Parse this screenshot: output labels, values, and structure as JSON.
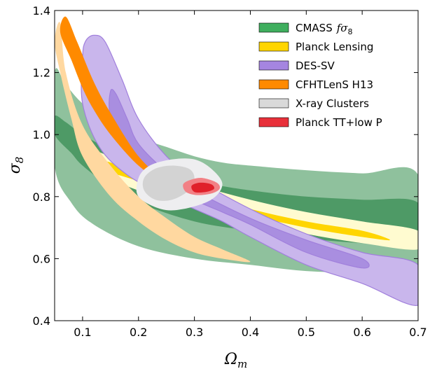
{
  "chart_data": {
    "type": "contour",
    "xlabel": "Ω_m",
    "ylabel": "σ_8",
    "xlim": [
      0.05,
      0.7
    ],
    "ylim": [
      0.4,
      1.4
    ],
    "xticks": [
      "0.1",
      "0.2",
      "0.3",
      "0.4",
      "0.5",
      "0.6",
      "0.7"
    ],
    "yticks": [
      "0.4",
      "0.6",
      "0.8",
      "1.0",
      "1.2",
      "1.4"
    ],
    "legend_position": "top-right",
    "series": [
      {
        "name": "CMASS fσ8",
        "legend_label": "CMASS",
        "legend_math": "fσ",
        "legend_sub": "8",
        "color_outer": "#8fc19d",
        "color_inner": "#4e9a66",
        "legend_color": "#3fae5e",
        "outer": [
          [
            0.05,
            1.2
          ],
          [
            0.05,
            0.9
          ],
          [
            0.08,
            0.78
          ],
          [
            0.12,
            0.71
          ],
          [
            0.2,
            0.64
          ],
          [
            0.3,
            0.6
          ],
          [
            0.4,
            0.58
          ],
          [
            0.5,
            0.56
          ],
          [
            0.6,
            0.555
          ],
          [
            0.7,
            0.55
          ],
          [
            0.7,
            0.87
          ],
          [
            0.6,
            0.875
          ],
          [
            0.5,
            0.885
          ],
          [
            0.4,
            0.9
          ],
          [
            0.35,
            0.91
          ],
          [
            0.3,
            0.93
          ],
          [
            0.25,
            0.96
          ],
          [
            0.2,
            0.99
          ],
          [
            0.15,
            1.03
          ],
          [
            0.1,
            1.1
          ],
          [
            0.07,
            1.16
          ]
        ],
        "inner": [
          [
            0.05,
            1.06
          ],
          [
            0.05,
            1.0
          ],
          [
            0.08,
            0.94
          ],
          [
            0.1,
            0.9
          ],
          [
            0.15,
            0.83
          ],
          [
            0.2,
            0.78
          ],
          [
            0.3,
            0.72
          ],
          [
            0.4,
            0.69
          ],
          [
            0.5,
            0.665
          ],
          [
            0.6,
            0.65
          ],
          [
            0.7,
            0.64
          ],
          [
            0.7,
            0.78
          ],
          [
            0.6,
            0.79
          ],
          [
            0.5,
            0.8
          ],
          [
            0.4,
            0.82
          ],
          [
            0.33,
            0.84
          ],
          [
            0.3,
            0.85
          ],
          [
            0.25,
            0.88
          ],
          [
            0.2,
            0.91
          ],
          [
            0.15,
            0.95
          ],
          [
            0.1,
            1.0
          ],
          [
            0.07,
            1.04
          ]
        ]
      },
      {
        "name": "Planck Lensing",
        "legend_label": "Planck Lensing",
        "color_outer": "#fffbd0",
        "color_inner": "#ffd500",
        "legend_color": "#ffd500",
        "outer": [
          [
            0.11,
            0.95
          ],
          [
            0.11,
            0.9
          ],
          [
            0.15,
            0.86
          ],
          [
            0.2,
            0.82
          ],
          [
            0.3,
            0.77
          ],
          [
            0.4,
            0.72
          ],
          [
            0.5,
            0.68
          ],
          [
            0.6,
            0.65
          ],
          [
            0.7,
            0.63
          ],
          [
            0.7,
            0.69
          ],
          [
            0.6,
            0.72
          ],
          [
            0.5,
            0.75
          ],
          [
            0.4,
            0.79
          ],
          [
            0.3,
            0.84
          ],
          [
            0.2,
            0.9
          ],
          [
            0.15,
            0.93
          ]
        ],
        "inner": [
          [
            0.11,
            0.92
          ],
          [
            0.13,
            0.89
          ],
          [
            0.2,
            0.85
          ],
          [
            0.3,
            0.79
          ],
          [
            0.4,
            0.74
          ],
          [
            0.5,
            0.7
          ],
          [
            0.6,
            0.67
          ],
          [
            0.65,
            0.66
          ],
          [
            0.6,
            0.69
          ],
          [
            0.5,
            0.72
          ],
          [
            0.4,
            0.76
          ],
          [
            0.3,
            0.81
          ],
          [
            0.2,
            0.87
          ],
          [
            0.15,
            0.91
          ]
        ]
      },
      {
        "name": "DES-SV",
        "legend_label": "DES-SV",
        "color_outer": "#c9b6ec",
        "color_inner": "#a98ee0",
        "legend_color": "#a585e0",
        "edge_color": "#a07fdc",
        "outer": [
          [
            0.1,
            1.25
          ],
          [
            0.1,
            1.1
          ],
          [
            0.13,
            0.96
          ],
          [
            0.18,
            0.87
          ],
          [
            0.25,
            0.8
          ],
          [
            0.3,
            0.76
          ],
          [
            0.35,
            0.72
          ],
          [
            0.4,
            0.67
          ],
          [
            0.5,
            0.58
          ],
          [
            0.6,
            0.52
          ],
          [
            0.7,
            0.45
          ],
          [
            0.7,
            0.58
          ],
          [
            0.6,
            0.62
          ],
          [
            0.5,
            0.68
          ],
          [
            0.4,
            0.76
          ],
          [
            0.3,
            0.86
          ],
          [
            0.25,
            0.93
          ],
          [
            0.2,
            1.05
          ],
          [
            0.17,
            1.18
          ],
          [
            0.14,
            1.3
          ],
          [
            0.12,
            1.32
          ],
          [
            0.105,
            1.3
          ]
        ],
        "inner": [
          [
            0.15,
            1.14
          ],
          [
            0.15,
            1.06
          ],
          [
            0.18,
            0.95
          ],
          [
            0.25,
            0.85
          ],
          [
            0.3,
            0.79
          ],
          [
            0.35,
            0.75
          ],
          [
            0.4,
            0.71
          ],
          [
            0.5,
            0.62
          ],
          [
            0.6,
            0.57
          ],
          [
            0.6,
            0.6
          ],
          [
            0.5,
            0.66
          ],
          [
            0.4,
            0.73
          ],
          [
            0.3,
            0.82
          ],
          [
            0.25,
            0.88
          ],
          [
            0.2,
            0.97
          ],
          [
            0.18,
            1.05
          ],
          [
            0.16,
            1.13
          ]
        ]
      },
      {
        "name": "CFHTLenS H13",
        "legend_label": "CFHTLenS H13",
        "color_outer": "#ffd8a0",
        "color_inner": "#ff8a00",
        "legend_color": "#ff8a00",
        "outer": [
          [
            0.06,
            1.36
          ],
          [
            0.07,
            1.2
          ],
          [
            0.1,
            1.03
          ],
          [
            0.15,
            0.9
          ],
          [
            0.2,
            0.8
          ],
          [
            0.25,
            0.73
          ],
          [
            0.3,
            0.67
          ],
          [
            0.35,
            0.63
          ],
          [
            0.4,
            0.59
          ],
          [
            0.35,
            0.6
          ],
          [
            0.3,
            0.62
          ],
          [
            0.25,
            0.66
          ],
          [
            0.2,
            0.72
          ],
          [
            0.15,
            0.8
          ],
          [
            0.1,
            0.93
          ],
          [
            0.08,
            1.05
          ],
          [
            0.06,
            1.2
          ],
          [
            0.05,
            1.3
          ]
        ],
        "inner": [
          [
            0.07,
            1.38
          ],
          [
            0.09,
            1.3
          ],
          [
            0.12,
            1.17
          ],
          [
            0.15,
            1.07
          ],
          [
            0.2,
            0.93
          ],
          [
            0.25,
            0.85
          ],
          [
            0.28,
            0.83
          ],
          [
            0.25,
            0.84
          ],
          [
            0.2,
            0.9
          ],
          [
            0.15,
            1.0
          ],
          [
            0.12,
            1.08
          ],
          [
            0.1,
            1.15
          ],
          [
            0.08,
            1.24
          ],
          [
            0.06,
            1.33
          ]
        ]
      },
      {
        "name": "X-ray Clusters",
        "legend_label": "X-ray Clusters",
        "color_outer": "#eeeef0",
        "color_inner": "#d3d3d3",
        "legend_color": "#d9d9d9",
        "outer": [
          [
            0.2,
            0.86
          ],
          [
            0.22,
            0.9
          ],
          [
            0.26,
            0.92
          ],
          [
            0.3,
            0.92
          ],
          [
            0.33,
            0.89
          ],
          [
            0.35,
            0.84
          ],
          [
            0.33,
            0.79
          ],
          [
            0.28,
            0.76
          ],
          [
            0.24,
            0.76
          ],
          [
            0.2,
            0.8
          ]
        ],
        "inner": [
          [
            0.21,
            0.86
          ],
          [
            0.23,
            0.89
          ],
          [
            0.26,
            0.9
          ],
          [
            0.29,
            0.89
          ],
          [
            0.3,
            0.86
          ],
          [
            0.29,
            0.82
          ],
          [
            0.26,
            0.79
          ],
          [
            0.23,
            0.79
          ],
          [
            0.21,
            0.82
          ]
        ]
      },
      {
        "name": "Planck TT+low P",
        "legend_label": "Planck TT+low P",
        "color_outer": "#f28085",
        "color_inner": "#e0202a",
        "legend_color": "#e8303a",
        "outer": [
          [
            0.28,
            0.84
          ],
          [
            0.295,
            0.855
          ],
          [
            0.315,
            0.86
          ],
          [
            0.34,
            0.845
          ],
          [
            0.345,
            0.825
          ],
          [
            0.33,
            0.81
          ],
          [
            0.305,
            0.805
          ],
          [
            0.285,
            0.815
          ]
        ],
        "inner": [
          [
            0.295,
            0.835
          ],
          [
            0.31,
            0.845
          ],
          [
            0.33,
            0.84
          ],
          [
            0.335,
            0.825
          ],
          [
            0.32,
            0.815
          ],
          [
            0.3,
            0.815
          ]
        ]
      }
    ]
  }
}
